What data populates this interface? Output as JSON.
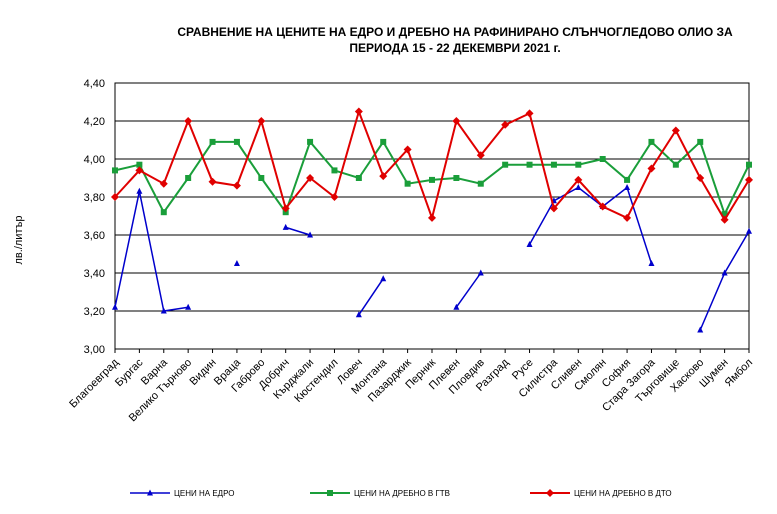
{
  "chart_data": {
    "type": "line",
    "title_line1": "СРАВНЕНИЕ НА ЦЕНИТЕ НА ЕДРО И ДРЕБНО НА РАФИНИРАНО СЛЪНЧОГЛЕДОВО ОЛИО ЗА",
    "title_line2": "ПЕРИОДА 15 - 22 ДЕКЕМВРИ 2021 г.",
    "ylabel": "лв./литър",
    "xlabel": "",
    "ylim": [
      3.0,
      4.4
    ],
    "yticks": [
      "3,00",
      "3,20",
      "3,40",
      "3,60",
      "3,80",
      "4,00",
      "4,20",
      "4,40"
    ],
    "grid": "horizontal",
    "legend_position": "bottom",
    "categories": [
      "Благоевград",
      "Бургас",
      "Варна",
      "Велико Търново",
      "Видин",
      "Враца",
      "Габрово",
      "Добрич",
      "Кърджали",
      "Кюстендил",
      "Ловеч",
      "Монтана",
      "Пазарджик",
      "Перник",
      "Плевен",
      "Пловдив",
      "Разград",
      "Русе",
      "Силистра",
      "Сливен",
      "Смолян",
      "София",
      "Стара Загора",
      "Търговище",
      "Хасково",
      "Шумен",
      "Ямбол"
    ],
    "series": [
      {
        "name": "ЦЕНИ НА ЕДРО",
        "color": "#0000cc",
        "marker": "triangle",
        "values": [
          3.22,
          3.83,
          3.2,
          3.22,
          null,
          3.45,
          null,
          3.64,
          3.6,
          null,
          3.18,
          3.37,
          null,
          null,
          3.22,
          3.4,
          null,
          3.55,
          3.78,
          3.85,
          3.75,
          3.85,
          3.45,
          null,
          3.1,
          3.4,
          3.62
        ]
      },
      {
        "name": "ЦЕНИ НА ДРЕБНО В ГТВ",
        "color": "#1a9e3a",
        "marker": "square",
        "values": [
          3.94,
          3.97,
          3.72,
          3.9,
          4.09,
          4.09,
          3.9,
          3.72,
          4.09,
          3.94,
          3.9,
          4.09,
          3.87,
          3.89,
          3.9,
          3.87,
          3.97,
          3.97,
          3.97,
          3.97,
          4.0,
          3.89,
          4.09,
          3.97,
          4.09,
          3.71,
          3.97
        ]
      },
      {
        "name": "ЦЕНИ НА ДРЕБНО В ДТО",
        "color": "#e00000",
        "marker": "diamond",
        "values": [
          3.8,
          3.94,
          3.87,
          4.2,
          3.88,
          3.86,
          4.2,
          3.74,
          3.9,
          3.8,
          4.25,
          3.91,
          4.05,
          3.69,
          4.2,
          4.02,
          4.18,
          4.24,
          3.74,
          3.89,
          3.75,
          3.69,
          3.95,
          4.15,
          3.9,
          3.68,
          3.89
        ]
      }
    ]
  }
}
